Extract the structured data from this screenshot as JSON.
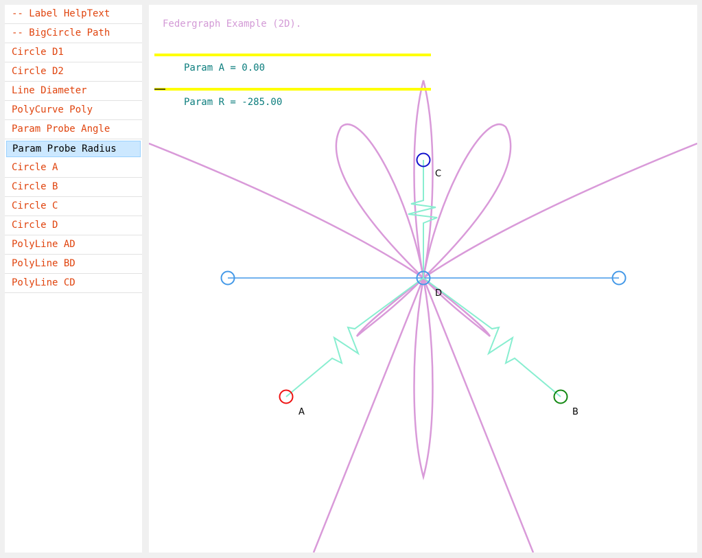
{
  "sidebar": {
    "items": [
      {
        "label": "-- Label HelpText"
      },
      {
        "label": "-- BigCircle Path"
      },
      {
        "label": "Circle D1"
      },
      {
        "label": "Circle D2"
      },
      {
        "label": "Line Diameter"
      },
      {
        "label": "PolyCurve Poly"
      },
      {
        "label": "Param Probe Angle"
      },
      {
        "label": "Param Probe Radius"
      },
      {
        "label": "Circle A"
      },
      {
        "label": "Circle B"
      },
      {
        "label": "Circle C"
      },
      {
        "label": "Circle D"
      },
      {
        "label": "PolyLine AD"
      },
      {
        "label": "PolyLine BD"
      },
      {
        "label": "PolyLine CD"
      }
    ],
    "selected_index": 7
  },
  "canvas": {
    "help_text": "Federgraph Example (2D).",
    "param_a": {
      "label": "Param A = 0.00",
      "fraction": 0.0
    },
    "param_r": {
      "label": "Param R = -285.00",
      "fraction": 0.04
    },
    "points": {
      "a": "A",
      "b": "B",
      "c": "C",
      "d": "D"
    }
  },
  "colors": {
    "curve": "#d99ad9",
    "spring": "#88eed0",
    "diameter": "#4499e8",
    "circle_a": "#ee1111",
    "circle_b": "#118811",
    "circle_c": "#1111cc",
    "circle_d": "#4499e8",
    "track": "#ffff00"
  }
}
